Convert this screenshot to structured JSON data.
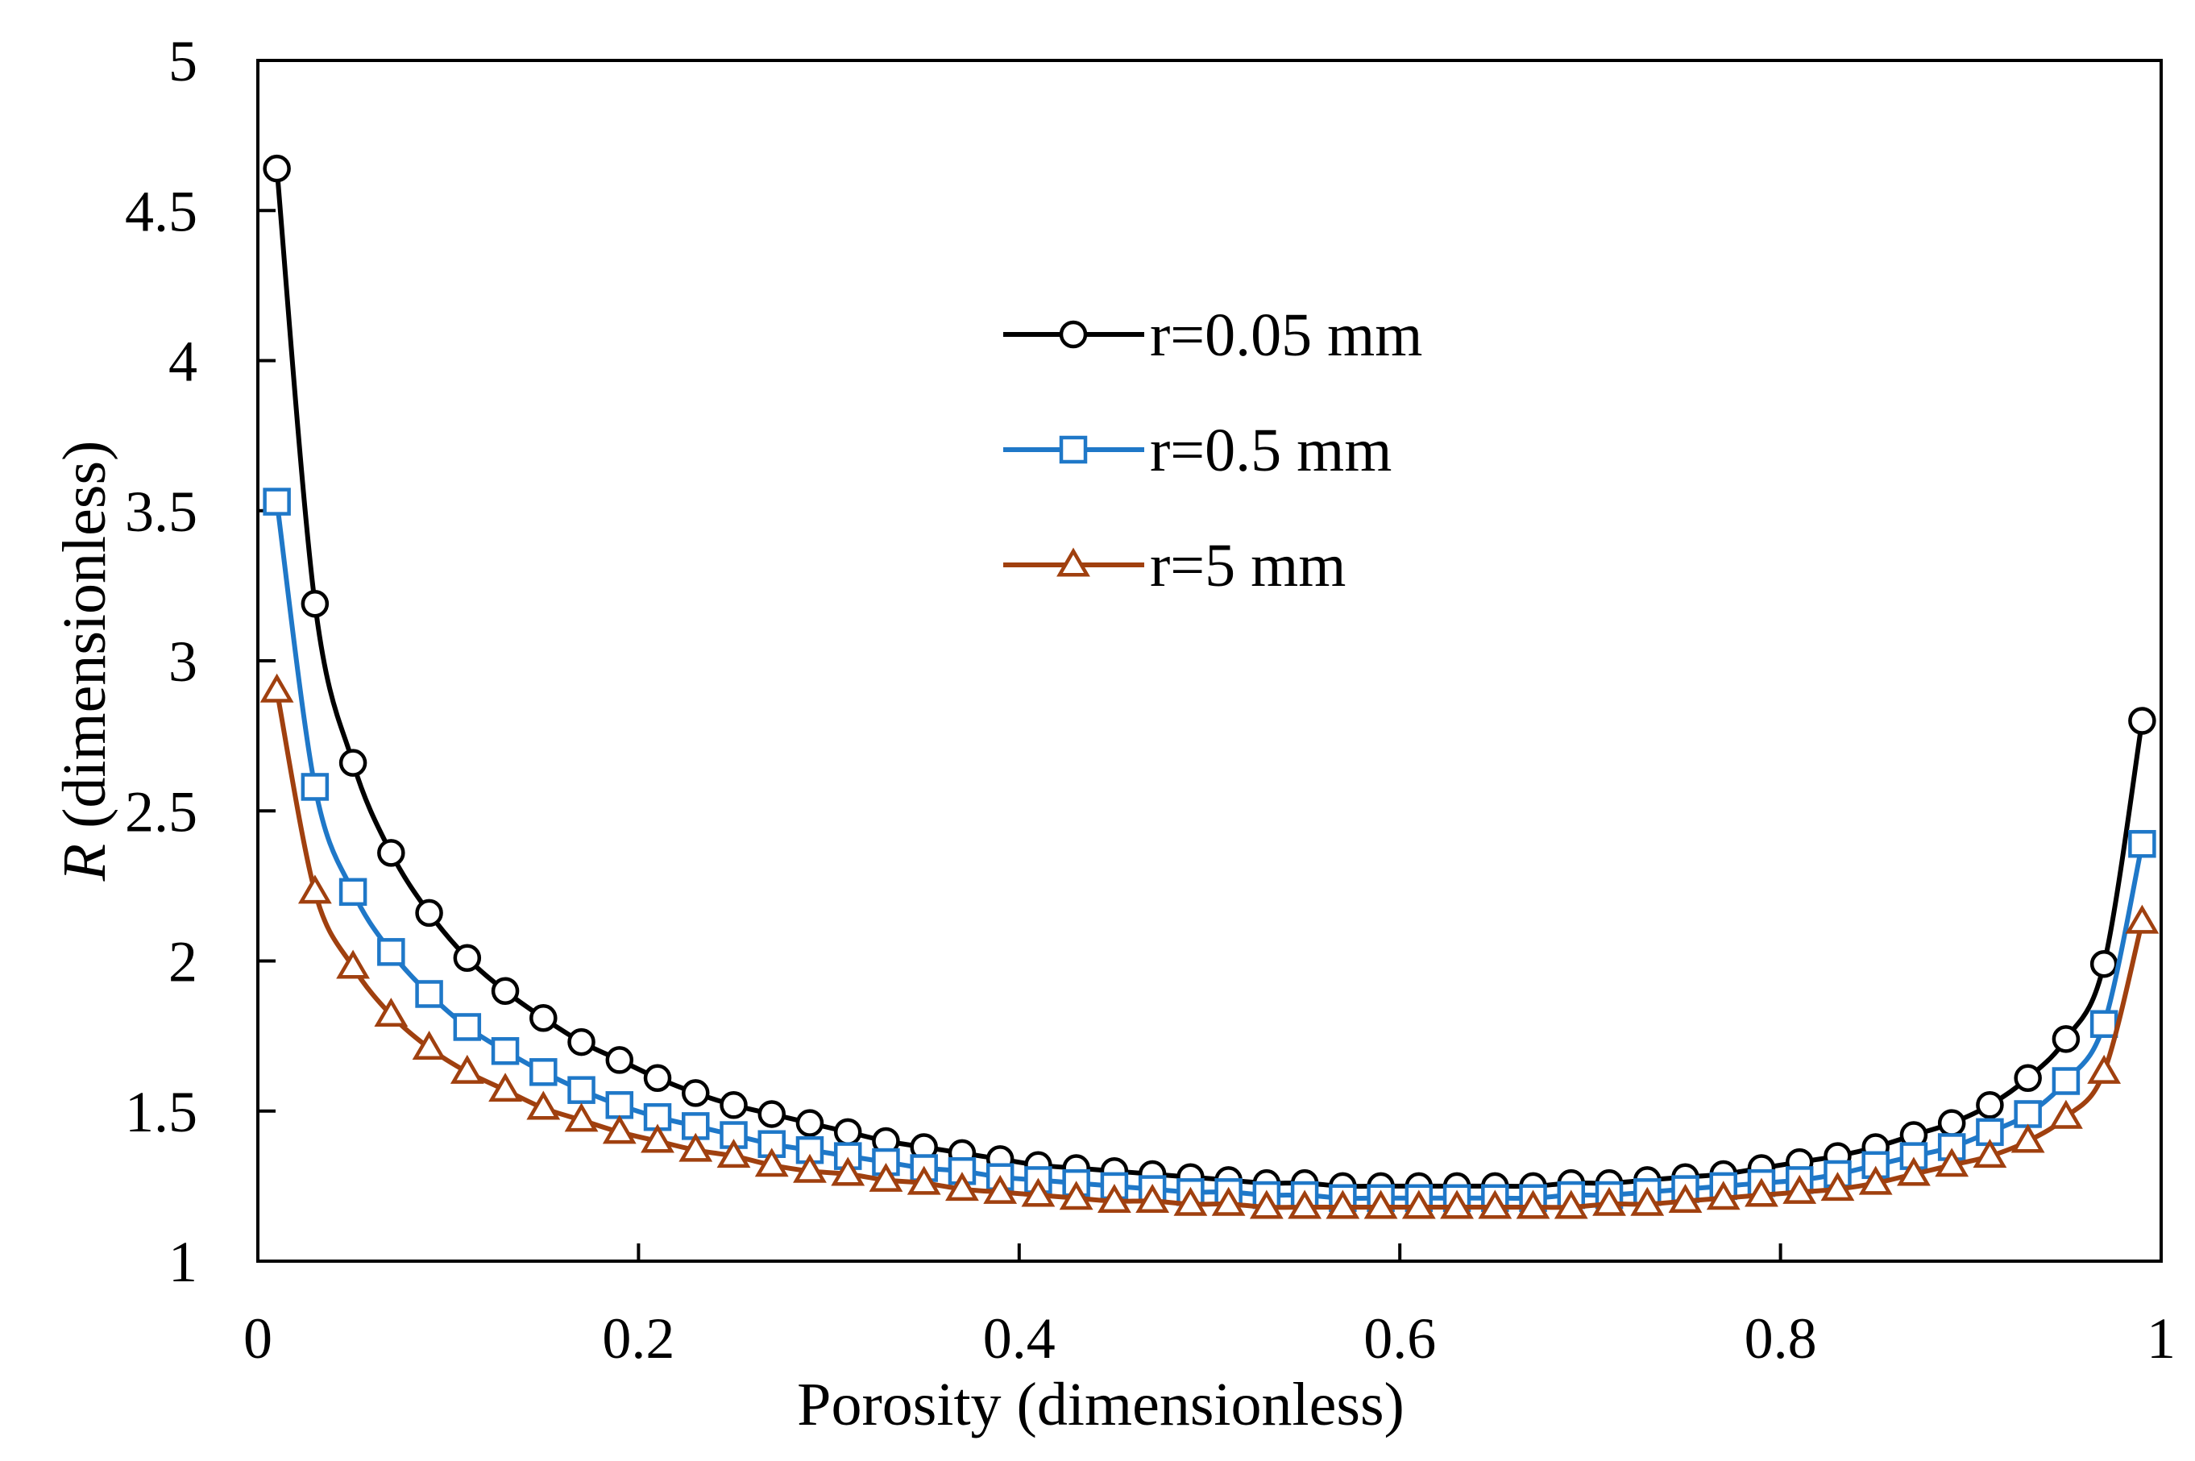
{
  "chart_data": {
    "type": "line",
    "title": "",
    "xlabel": "Porosity (dimensionless)",
    "ylabel_italic": "R",
    "ylabel_rest": " (dimensionless)",
    "xlim": [
      0,
      1
    ],
    "ylim": [
      1,
      5
    ],
    "xticks": [
      0,
      0.2,
      0.4,
      0.6,
      0.8,
      1
    ],
    "xtick_labels": [
      "0",
      "0.2",
      "0.4",
      "0.6",
      "0.8",
      "1"
    ],
    "yticks": [
      1,
      1.5,
      2,
      2.5,
      3,
      3.5,
      4,
      4.5,
      5
    ],
    "ytick_labels": [
      "1",
      "1.5",
      "2",
      "2.5",
      "3",
      "3.5",
      "4",
      "4.5",
      "5"
    ],
    "grid": false,
    "legend_position": "center",
    "x": [
      0.01,
      0.03,
      0.05,
      0.07,
      0.09,
      0.11,
      0.13,
      0.15,
      0.17,
      0.19,
      0.21,
      0.23,
      0.25,
      0.27,
      0.29,
      0.31,
      0.33,
      0.35,
      0.37,
      0.39,
      0.41,
      0.43,
      0.45,
      0.47,
      0.49,
      0.51,
      0.53,
      0.55,
      0.57,
      0.59,
      0.61,
      0.63,
      0.65,
      0.67,
      0.69,
      0.71,
      0.73,
      0.75,
      0.77,
      0.79,
      0.81,
      0.83,
      0.85,
      0.87,
      0.89,
      0.91,
      0.93,
      0.95,
      0.97,
      0.99
    ],
    "series": [
      {
        "name": "r=0.05 mm",
        "color": "#000000",
        "marker": "circle",
        "values": [
          4.64,
          3.19,
          2.66,
          2.36,
          2.16,
          2.01,
          1.9,
          1.81,
          1.73,
          1.67,
          1.61,
          1.56,
          1.52,
          1.49,
          1.46,
          1.43,
          1.4,
          1.38,
          1.36,
          1.34,
          1.32,
          1.31,
          1.3,
          1.29,
          1.28,
          1.27,
          1.26,
          1.26,
          1.25,
          1.25,
          1.25,
          1.25,
          1.25,
          1.25,
          1.26,
          1.26,
          1.27,
          1.28,
          1.29,
          1.31,
          1.33,
          1.35,
          1.38,
          1.42,
          1.46,
          1.52,
          1.61,
          1.74,
          1.99,
          2.8
        ]
      },
      {
        "name": "r=0.5 mm",
        "color": "#1f78c8",
        "marker": "square",
        "values": [
          3.53,
          2.58,
          2.23,
          2.03,
          1.89,
          1.78,
          1.7,
          1.63,
          1.57,
          1.52,
          1.48,
          1.45,
          1.42,
          1.39,
          1.37,
          1.35,
          1.33,
          1.31,
          1.3,
          1.28,
          1.27,
          1.26,
          1.25,
          1.24,
          1.23,
          1.23,
          1.22,
          1.22,
          1.21,
          1.21,
          1.21,
          1.21,
          1.21,
          1.21,
          1.22,
          1.22,
          1.23,
          1.24,
          1.25,
          1.26,
          1.27,
          1.29,
          1.32,
          1.35,
          1.38,
          1.43,
          1.49,
          1.6,
          1.79,
          2.39
        ]
      },
      {
        "name": "r=5 mm",
        "color": "#a0400f",
        "marker": "triangle",
        "values": [
          2.9,
          2.23,
          1.98,
          1.82,
          1.71,
          1.63,
          1.57,
          1.51,
          1.47,
          1.43,
          1.4,
          1.37,
          1.35,
          1.32,
          1.3,
          1.29,
          1.27,
          1.26,
          1.24,
          1.23,
          1.22,
          1.21,
          1.2,
          1.2,
          1.19,
          1.19,
          1.18,
          1.18,
          1.18,
          1.18,
          1.18,
          1.18,
          1.18,
          1.18,
          1.18,
          1.19,
          1.19,
          1.2,
          1.21,
          1.22,
          1.23,
          1.24,
          1.26,
          1.29,
          1.32,
          1.35,
          1.4,
          1.48,
          1.63,
          2.13
        ]
      }
    ]
  }
}
